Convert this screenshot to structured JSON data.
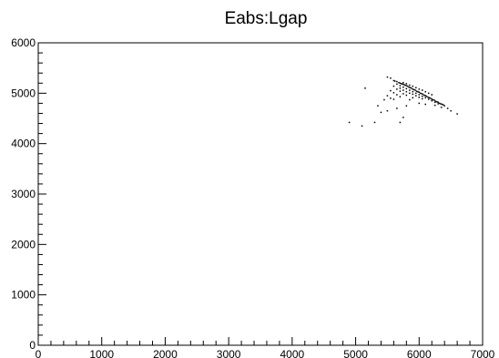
{
  "chart_data": {
    "type": "scatter",
    "title": "Eabs:Lgap",
    "xlabel": "",
    "ylabel": "",
    "xlim": [
      0,
      7000
    ],
    "ylim": [
      0,
      6000
    ],
    "x_ticks": [
      "0",
      "1000",
      "2000",
      "3000",
      "4000",
      "5000",
      "6000",
      "7000"
    ],
    "y_ticks": [
      "0",
      "1000",
      "2000",
      "3000",
      "4000",
      "5000",
      "6000"
    ],
    "grid": false,
    "marker_color": "#000000",
    "points": [
      [
        5600,
        5250
      ],
      [
        5620,
        5240
      ],
      [
        5650,
        5230
      ],
      [
        5680,
        5210
      ],
      [
        5700,
        5200
      ],
      [
        5720,
        5190
      ],
      [
        5740,
        5180
      ],
      [
        5760,
        5170
      ],
      [
        5780,
        5160
      ],
      [
        5800,
        5150
      ],
      [
        5820,
        5140
      ],
      [
        5840,
        5120
      ],
      [
        5860,
        5110
      ],
      [
        5880,
        5100
      ],
      [
        5900,
        5080
      ],
      [
        5920,
        5070
      ],
      [
        5940,
        5060
      ],
      [
        5960,
        5040
      ],
      [
        5980,
        5030
      ],
      [
        6000,
        5020
      ],
      [
        6020,
        5000
      ],
      [
        6040,
        4990
      ],
      [
        6060,
        4980
      ],
      [
        6080,
        4960
      ],
      [
        6100,
        4950
      ],
      [
        6120,
        4940
      ],
      [
        6140,
        4920
      ],
      [
        6160,
        4910
      ],
      [
        6180,
        4900
      ],
      [
        6200,
        4880
      ],
      [
        6220,
        4870
      ],
      [
        6240,
        4860
      ],
      [
        6260,
        4840
      ],
      [
        6280,
        4830
      ],
      [
        6300,
        4820
      ],
      [
        6320,
        4800
      ],
      [
        6340,
        4790
      ],
      [
        6360,
        4780
      ],
      [
        6380,
        4770
      ],
      [
        6400,
        4750
      ],
      [
        5700,
        5150
      ],
      [
        5750,
        5120
      ],
      [
        5800,
        5090
      ],
      [
        5850,
        5060
      ],
      [
        5900,
        5030
      ],
      [
        5950,
        5000
      ],
      [
        6000,
        4970
      ],
      [
        6050,
        4940
      ],
      [
        6100,
        4910
      ],
      [
        6150,
        4880
      ],
      [
        6200,
        4850
      ],
      [
        6250,
        4820
      ],
      [
        6300,
        4790
      ],
      [
        5750,
        5210
      ],
      [
        5800,
        5190
      ],
      [
        5850,
        5160
      ],
      [
        5900,
        5140
      ],
      [
        5950,
        5110
      ],
      [
        6000,
        5080
      ],
      [
        6050,
        5060
      ],
      [
        6100,
        5030
      ],
      [
        6150,
        5000
      ],
      [
        6200,
        4970
      ],
      [
        5650,
        5180
      ],
      [
        5700,
        5100
      ],
      [
        5750,
        5060
      ],
      [
        5800,
        5030
      ],
      [
        5850,
        5000
      ],
      [
        5900,
        4980
      ],
      [
        5950,
        4950
      ],
      [
        6000,
        4920
      ],
      [
        6050,
        4890
      ],
      [
        5600,
        5140
      ],
      [
        5650,
        5080
      ],
      [
        5700,
        5040
      ],
      [
        5750,
        4990
      ],
      [
        5800,
        4960
      ],
      [
        5550,
        5050
      ],
      [
        5600,
        5010
      ],
      [
        5650,
        4970
      ],
      [
        5500,
        4950
      ],
      [
        5550,
        4900
      ],
      [
        5450,
        4870
      ],
      [
        5600,
        4880
      ],
      [
        5700,
        4930
      ],
      [
        5850,
        4870
      ],
      [
        5900,
        4910
      ],
      [
        5400,
        4620
      ],
      [
        5350,
        4750
      ],
      [
        5650,
        4700
      ],
      [
        5750,
        4520
      ],
      [
        5700,
        4420
      ],
      [
        5150,
        5100
      ],
      [
        5500,
        5320
      ],
      [
        5550,
        5300
      ],
      [
        6450,
        4700
      ],
      [
        6500,
        4650
      ],
      [
        6600,
        4590
      ],
      [
        4900,
        4420
      ],
      [
        5100,
        4350
      ],
      [
        5300,
        4420
      ],
      [
        5500,
        4650
      ],
      [
        5800,
        4750
      ],
      [
        6000,
        4800
      ],
      [
        6100,
        4780
      ],
      [
        6250,
        4760
      ],
      [
        6350,
        4720
      ]
    ]
  }
}
